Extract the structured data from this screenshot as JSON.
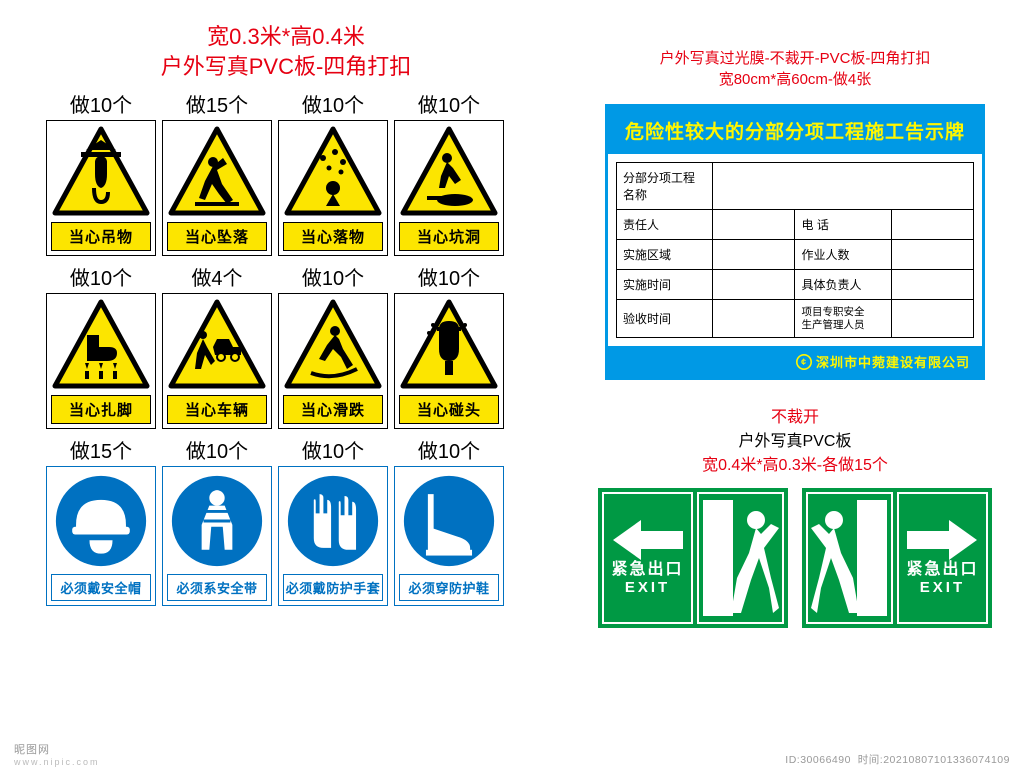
{
  "colors": {
    "red": "#e60012",
    "warn_yellow": "#fce500",
    "warn_stroke": "#000000",
    "mand_blue": "#0071c1",
    "board_blue": "#0099e5",
    "board_yellow": "#fff600",
    "exit_green": "#009944",
    "white": "#ffffff",
    "black": "#000000"
  },
  "left": {
    "title_l1": "宽0.3米*高0.4米",
    "title_l2": "户外写真PVC板-四角打扣",
    "signs": [
      {
        "qty": "做10个",
        "type": "warn",
        "label": "当心吊物",
        "icon": "hook"
      },
      {
        "qty": "做15个",
        "type": "warn",
        "label": "当心坠落",
        "icon": "fall"
      },
      {
        "qty": "做10个",
        "type": "warn",
        "label": "当心落物",
        "icon": "debris"
      },
      {
        "qty": "做10个",
        "type": "warn",
        "label": "当心坑洞",
        "icon": "hole"
      },
      {
        "qty": "做10个",
        "type": "warn",
        "label": "当心扎脚",
        "icon": "foot"
      },
      {
        "qty": "做4个",
        "type": "warn",
        "label": "当心车辆",
        "icon": "vehicle"
      },
      {
        "qty": "做10个",
        "type": "warn",
        "label": "当心滑跌",
        "icon": "slip"
      },
      {
        "qty": "做10个",
        "type": "warn",
        "label": "当心碰头",
        "icon": "head"
      },
      {
        "qty": "做15个",
        "type": "mand",
        "label": "必须戴安全帽",
        "icon": "helmet"
      },
      {
        "qty": "做10个",
        "type": "mand",
        "label": "必须系安全带",
        "icon": "harness"
      },
      {
        "qty": "做10个",
        "type": "mand",
        "label": "必须戴防护手套",
        "icon": "gloves"
      },
      {
        "qty": "做10个",
        "type": "mand",
        "label": "必须穿防护鞋",
        "icon": "boots"
      }
    ]
  },
  "right": {
    "title_l1": "户外写真过光膜-不裁开-PVC板-四角打扣",
    "title_l2": "宽80cm*高60cm-做4张",
    "board": {
      "header": "危险性较大的分部分项工程施工告示牌",
      "rows": [
        [
          "分部分项工程名称",
          "",
          "",
          ""
        ],
        [
          "责任人",
          "",
          "电 话",
          ""
        ],
        [
          "实施区域",
          "",
          "作业人数",
          ""
        ],
        [
          "实施时间",
          "",
          "具体负责人",
          ""
        ],
        [
          "验收时间",
          "",
          "项目专职安全\n生产管理人员",
          ""
        ]
      ],
      "footer": "深圳市中菀建设有限公司"
    },
    "exit": {
      "t1": "不裁开",
      "t2": "户外写真PVC板",
      "t3": "宽0.4米*高0.3米-各做15个",
      "label_cn": "紧急出口",
      "label_en": "EXIT"
    }
  },
  "watermark": {
    "bl_main": "昵图网",
    "bl_sub": "www.nipic.com",
    "br_l1": "ID:30066490",
    "br_l2": "时间:20210807101336074109"
  }
}
